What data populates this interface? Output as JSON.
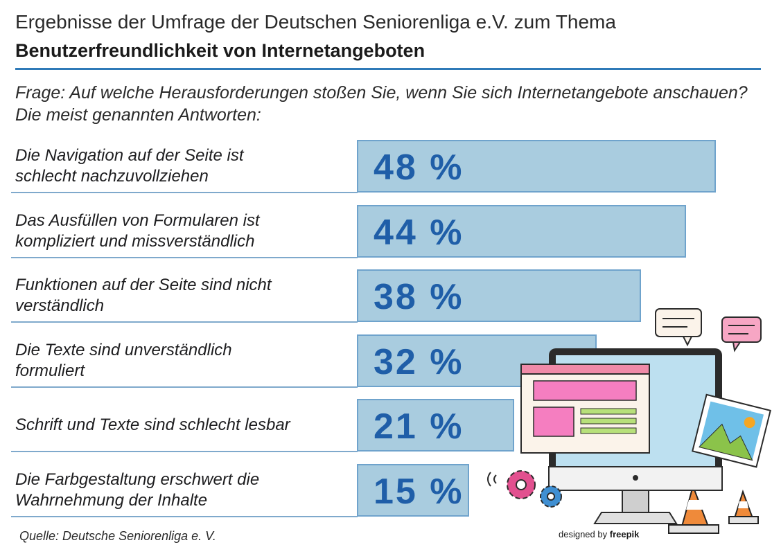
{
  "header": {
    "title_line1": "Ergebnisse der Umfrage der Deutschen Seniorenliga e.V. zum Thema",
    "title_line2": "Benutzerfreundlichkeit von Internetangeboten"
  },
  "question": "Frage: Auf welche Herausforderungen stoßen Sie, wenn Sie sich Internetangebote anschauen? Die meist genannten Antworten:",
  "chart_data": {
    "type": "bar",
    "orientation": "horizontal",
    "categories": [
      "Die Navigation auf der Seite ist schlecht nachzuvollziehen",
      "Das Ausfüllen von Formularen ist kompliziert und missverständlich",
      "Funktionen auf der Seite sind nicht verständlich",
      "Die Texte sind unverständlich formuliert",
      "Schrift und Texte sind schlecht lesbar",
      "Die Farbgestaltung erschwert die Wahrnehmung der Inhalte"
    ],
    "values": [
      48,
      44,
      38,
      32,
      21,
      15
    ],
    "value_labels": [
      "48 %",
      "44 %",
      "38 %",
      "32 %",
      "21 %",
      "15 %"
    ],
    "unit": "%",
    "grid": false,
    "legend": "none"
  },
  "labels": [
    [
      "Die Navigation auf der Seite ist",
      "schlecht nachzuvollziehen"
    ],
    [
      "Das Ausfüllen von Formularen ist",
      "kompliziert und missverständlich"
    ],
    [
      "Funktionen auf der Seite sind nicht",
      "verständlich"
    ],
    [
      "Die Texte sind unverständlich",
      "formuliert"
    ],
    [
      "Schrift und Texte sind schlecht lesbar"
    ],
    [
      "Die Farbgestaltung erschwert die",
      "Wahrnehmung der Inhalte"
    ]
  ],
  "footer": {
    "source": "Quelle: Deutsche Seniorenliga e. V.",
    "credit_prefix": "designed by",
    "credit_brand": "freepik"
  },
  "colors": {
    "bar_fill": "#a9ccdf",
    "bar_border": "#6fa3cc",
    "value_text": "#1f5ea8",
    "accent_rule": "#2f7ab8"
  }
}
